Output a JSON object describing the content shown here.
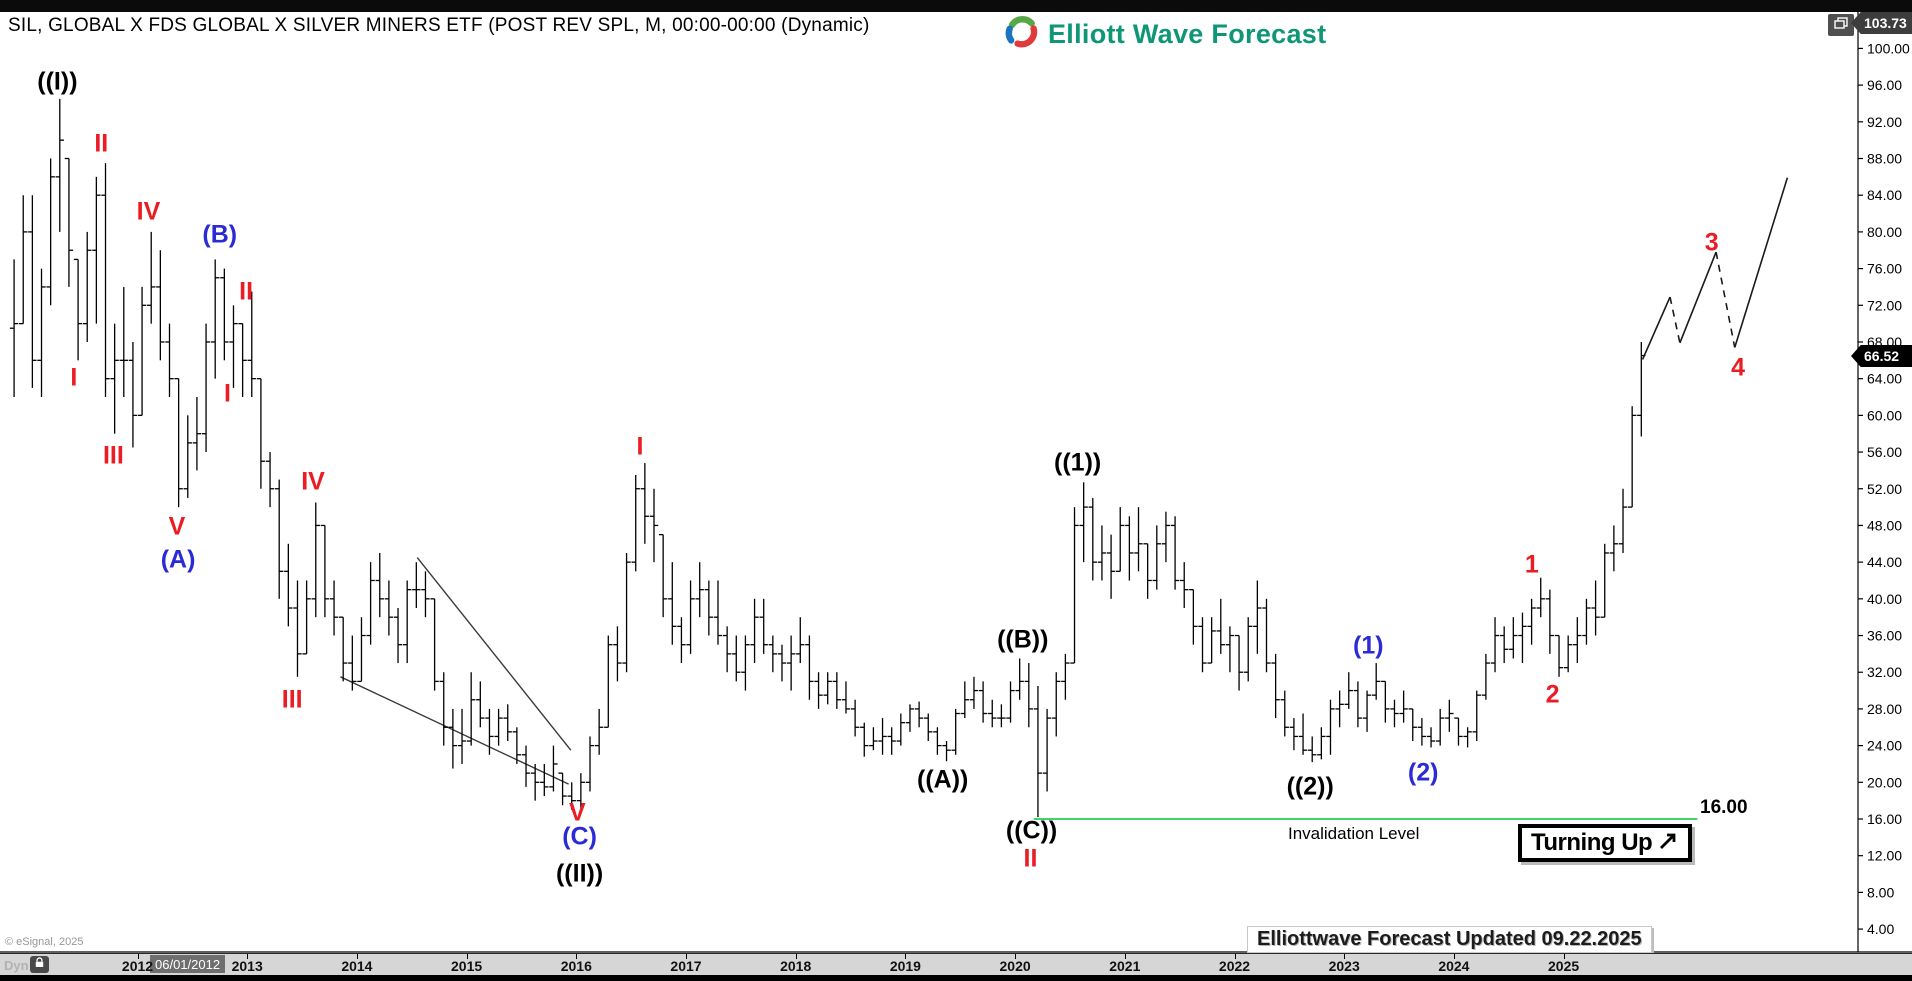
{
  "title_bar": {
    "title": "SIL, GLOBAL X FDS GLOBAL X SILVER MINERS ETF (POST REV SPL, M, 00:00-00:00 (Dynamic)",
    "logo_text": "Elliott Wave Forecast"
  },
  "price_axis": {
    "min": 4,
    "max": 100,
    "step": 4,
    "decimals": 2,
    "high_badge": "103.73",
    "last_badge": "66.52"
  },
  "time_axis": {
    "years": [
      2012,
      2013,
      2014,
      2015,
      2016,
      2017,
      2018,
      2019,
      2020,
      2021,
      2022,
      2023,
      2024,
      2025
    ],
    "selected_date": "06/01/2012",
    "mode_label": "Dyn",
    "lock_icon": "lock-icon"
  },
  "status": {
    "copyright": "© eSignal, 2025",
    "updated_note": "Elliottwave Forecast Updated 09.22.2025"
  },
  "annotations": {
    "invalidation": {
      "label": "Invalidation Level",
      "value_label": "16.00",
      "price": 16
    },
    "turning_up": {
      "label": "Turning Up",
      "icon": "up-right-arrow-icon"
    },
    "wave_labels": [
      {
        "text": "((I))",
        "color": "black",
        "t": 2011.27,
        "p": 96.3
      },
      {
        "text": "II",
        "color": "red",
        "t": 2011.67,
        "p": 89.6
      },
      {
        "text": "IV",
        "color": "red",
        "t": 2012.1,
        "p": 82.2
      },
      {
        "text": "(B)",
        "color": "blue",
        "t": 2012.75,
        "p": 79.7
      },
      {
        "text": "II",
        "color": "red",
        "t": 2012.99,
        "p": 73.5
      },
      {
        "text": "I",
        "color": "red",
        "t": 2011.42,
        "p": 64.1
      },
      {
        "text": "I",
        "color": "red",
        "t": 2012.82,
        "p": 62.3
      },
      {
        "text": "III",
        "color": "red",
        "t": 2011.78,
        "p": 55.6
      },
      {
        "text": "V",
        "color": "red",
        "t": 2012.36,
        "p": 47.8
      },
      {
        "text": "(A)",
        "color": "blue",
        "t": 2012.37,
        "p": 44.2
      },
      {
        "text": "IV",
        "color": "red",
        "t": 2013.6,
        "p": 52.7
      },
      {
        "text": "III",
        "color": "red",
        "t": 2013.41,
        "p": 29.0
      },
      {
        "text": "I",
        "color": "red",
        "t": 2016.58,
        "p": 56.5
      },
      {
        "text": "V",
        "color": "red",
        "t": 2016.01,
        "p": 16.7
      },
      {
        "text": "(C)",
        "color": "blue",
        "t": 2016.03,
        "p": 14.0
      },
      {
        "text": "((II))",
        "color": "black",
        "t": 2016.03,
        "p": 10.0
      },
      {
        "text": "((A))",
        "color": "black",
        "t": 2019.34,
        "p": 20.3
      },
      {
        "text": "((B))",
        "color": "black",
        "t": 2020.07,
        "p": 35.5
      },
      {
        "text": "((C))",
        "color": "black",
        "t": 2020.15,
        "p": 14.7
      },
      {
        "text": "II",
        "color": "red",
        "t": 2020.14,
        "p": 11.6
      },
      {
        "text": "((1))",
        "color": "black",
        "t": 2020.57,
        "p": 54.8
      },
      {
        "text": "((2))",
        "color": "black",
        "t": 2022.69,
        "p": 19.5
      },
      {
        "text": "(1)",
        "color": "blue",
        "t": 2023.22,
        "p": 34.9
      },
      {
        "text": "(2)",
        "color": "blue",
        "t": 2023.72,
        "p": 21.0
      },
      {
        "text": "1",
        "color": "red",
        "t": 2024.71,
        "p": 43.7
      },
      {
        "text": "2",
        "color": "red",
        "t": 2024.9,
        "p": 29.5
      },
      {
        "text": "3",
        "color": "red",
        "t": 2026.35,
        "p": 78.8
      },
      {
        "text": "4",
        "color": "red",
        "t": 2026.59,
        "p": 65.2
      }
    ]
  },
  "colors": {
    "red_label": "#ea1c24",
    "blue_label": "#2b2bd6",
    "black_label": "#000000",
    "support_green": "#00c832",
    "bar": "#000000",
    "trendline": "#3a3a3a",
    "logo_green": "#0e9676"
  },
  "chart_data": {
    "type": "bar",
    "subtype": "monthly-ohlc-bars",
    "symbol": "SIL",
    "timeframe": "M",
    "ylabel": "Price",
    "ylim": [
      2,
      104
    ],
    "x_domain": [
      2010.8,
      2027.2
    ],
    "grid": false,
    "bars_format": [
      "year",
      "month",
      "high",
      "low",
      "close"
    ],
    "bars": [
      [
        2010,
        11,
        77,
        62,
        70
      ],
      [
        2010,
        12,
        84,
        70,
        80
      ],
      [
        2011,
        1,
        84,
        63,
        66
      ],
      [
        2011,
        2,
        76,
        62,
        74
      ],
      [
        2011,
        3,
        88,
        72,
        86
      ],
      [
        2011,
        4,
        94.5,
        80,
        90
      ],
      [
        2011,
        5,
        88,
        74,
        78
      ],
      [
        2011,
        6,
        77,
        66,
        70
      ],
      [
        2011,
        7,
        80,
        68,
        78
      ],
      [
        2011,
        8,
        86,
        70,
        84
      ],
      [
        2011,
        9,
        87.5,
        62,
        64
      ],
      [
        2011,
        10,
        70,
        58,
        66
      ],
      [
        2011,
        11,
        74,
        62,
        66
      ],
      [
        2011,
        12,
        68,
        56.5,
        60
      ],
      [
        2012,
        1,
        74,
        60,
        72
      ],
      [
        2012,
        2,
        80,
        70,
        74
      ],
      [
        2012,
        3,
        78,
        66,
        68
      ],
      [
        2012,
        4,
        70,
        62,
        64
      ],
      [
        2012,
        5,
        64,
        50,
        52
      ],
      [
        2012,
        6,
        60,
        51,
        57
      ],
      [
        2012,
        7,
        62,
        54,
        58
      ],
      [
        2012,
        8,
        70,
        56,
        68
      ],
      [
        2012,
        9,
        77,
        64,
        75
      ],
      [
        2012,
        10,
        76,
        66,
        68
      ],
      [
        2012,
        11,
        72,
        63,
        70
      ],
      [
        2012,
        12,
        70,
        62,
        66
      ],
      [
        2013,
        1,
        73.5,
        62,
        64
      ],
      [
        2013,
        2,
        64,
        52,
        55
      ],
      [
        2013,
        3,
        56,
        50,
        52
      ],
      [
        2013,
        4,
        53,
        40,
        43
      ],
      [
        2013,
        5,
        46,
        37,
        39
      ],
      [
        2013,
        6,
        42,
        31.5,
        34
      ],
      [
        2013,
        7,
        42,
        34,
        40
      ],
      [
        2013,
        8,
        50.5,
        38,
        48
      ],
      [
        2013,
        9,
        48,
        38,
        40
      ],
      [
        2013,
        10,
        42,
        36,
        38
      ],
      [
        2013,
        11,
        38,
        31,
        33
      ],
      [
        2013,
        12,
        36,
        30,
        31
      ],
      [
        2014,
        1,
        38,
        31,
        36
      ],
      [
        2014,
        2,
        44,
        35,
        42
      ],
      [
        2014,
        3,
        45,
        38,
        40
      ],
      [
        2014,
        4,
        42,
        36,
        38
      ],
      [
        2014,
        5,
        39,
        33,
        35
      ],
      [
        2014,
        6,
        42,
        33,
        41
      ],
      [
        2014,
        7,
        44,
        39,
        41
      ],
      [
        2014,
        8,
        43,
        38,
        40
      ],
      [
        2014,
        9,
        40,
        30,
        31
      ],
      [
        2014,
        10,
        32,
        24,
        26
      ],
      [
        2014,
        11,
        28,
        21.5,
        24
      ],
      [
        2014,
        12,
        28,
        22,
        24.5
      ],
      [
        2015,
        1,
        32,
        24,
        29
      ],
      [
        2015,
        2,
        31,
        26,
        27
      ],
      [
        2015,
        3,
        28,
        23,
        25
      ],
      [
        2015,
        4,
        28,
        24,
        27
      ],
      [
        2015,
        5,
        28.5,
        24.5,
        25.5
      ],
      [
        2015,
        6,
        26,
        22,
        23
      ],
      [
        2015,
        7,
        24,
        19.5,
        21
      ],
      [
        2015,
        8,
        22,
        18,
        20
      ],
      [
        2015,
        9,
        22,
        18.5,
        19.5
      ],
      [
        2015,
        10,
        24,
        19,
        22
      ],
      [
        2015,
        11,
        21,
        17.5,
        18.5
      ],
      [
        2015,
        12,
        20,
        17,
        18
      ],
      [
        2016,
        1,
        21,
        17.2,
        20
      ],
      [
        2016,
        2,
        25,
        19,
        24
      ],
      [
        2016,
        3,
        28,
        23,
        26
      ],
      [
        2016,
        4,
        36,
        26,
        35
      ],
      [
        2016,
        5,
        37,
        31,
        33
      ],
      [
        2016,
        6,
        45,
        32,
        44
      ],
      [
        2016,
        7,
        53.5,
        43,
        52
      ],
      [
        2016,
        8,
        54.8,
        46,
        49
      ],
      [
        2016,
        9,
        52,
        44,
        48
      ],
      [
        2016,
        10,
        47,
        38,
        40
      ],
      [
        2016,
        11,
        44,
        35,
        37
      ],
      [
        2016,
        12,
        38,
        33,
        35
      ],
      [
        2017,
        1,
        42,
        34,
        40
      ],
      [
        2017,
        2,
        44,
        38,
        41
      ],
      [
        2017,
        3,
        42,
        36,
        38
      ],
      [
        2017,
        4,
        42,
        35,
        36
      ],
      [
        2017,
        5,
        37,
        32,
        34
      ],
      [
        2017,
        6,
        36,
        31,
        32
      ],
      [
        2017,
        7,
        36,
        30,
        35
      ],
      [
        2017,
        8,
        40,
        33,
        38
      ],
      [
        2017,
        9,
        40,
        34,
        35
      ],
      [
        2017,
        10,
        36,
        32,
        34
      ],
      [
        2017,
        11,
        35,
        31,
        33
      ],
      [
        2017,
        12,
        36,
        30,
        34
      ],
      [
        2018,
        1,
        38,
        33,
        35
      ],
      [
        2018,
        2,
        36,
        29,
        31
      ],
      [
        2018,
        3,
        32,
        28,
        29.5
      ],
      [
        2018,
        4,
        32,
        28.5,
        31
      ],
      [
        2018,
        5,
        32,
        28,
        29
      ],
      [
        2018,
        6,
        31,
        27.5,
        28
      ],
      [
        2018,
        7,
        29,
        25,
        26
      ],
      [
        2018,
        8,
        26.5,
        22.8,
        24
      ],
      [
        2018,
        9,
        26,
        23.5,
        24.5
      ],
      [
        2018,
        10,
        27,
        23,
        25
      ],
      [
        2018,
        11,
        26,
        23,
        24.5
      ],
      [
        2018,
        12,
        27.5,
        24,
        26.5
      ],
      [
        2019,
        1,
        28.5,
        25.5,
        28
      ],
      [
        2019,
        2,
        28.8,
        26,
        27
      ],
      [
        2019,
        3,
        27.5,
        24.5,
        25.5
      ],
      [
        2019,
        4,
        26,
        23,
        24
      ],
      [
        2019,
        5,
        24.5,
        22.3,
        23.5
      ],
      [
        2019,
        6,
        28,
        23,
        27.5
      ],
      [
        2019,
        7,
        31,
        27,
        29
      ],
      [
        2019,
        8,
        31.5,
        28,
        30
      ],
      [
        2019,
        9,
        31,
        26.5,
        27.5
      ],
      [
        2019,
        10,
        29,
        26,
        27
      ],
      [
        2019,
        11,
        28.5,
        26,
        27
      ],
      [
        2019,
        12,
        31,
        26.5,
        30
      ],
      [
        2020,
        1,
        33.5,
        29,
        31
      ],
      [
        2020,
        2,
        33,
        26,
        28
      ],
      [
        2020,
        3,
        30.5,
        16.2,
        21
      ],
      [
        2020,
        4,
        28,
        19,
        27
      ],
      [
        2020,
        5,
        32,
        25,
        31
      ],
      [
        2020,
        6,
        34,
        29,
        33
      ],
      [
        2020,
        7,
        50,
        33,
        48
      ],
      [
        2020,
        8,
        52.7,
        44,
        50
      ],
      [
        2020,
        9,
        51,
        42,
        44
      ],
      [
        2020,
        10,
        48,
        42,
        45
      ],
      [
        2020,
        11,
        47,
        40,
        43
      ],
      [
        2020,
        12,
        50,
        43,
        48
      ],
      [
        2021,
        1,
        49,
        42,
        45
      ],
      [
        2021,
        2,
        50,
        43,
        46
      ],
      [
        2021,
        3,
        46,
        40,
        42
      ],
      [
        2021,
        4,
        48,
        41,
        46
      ],
      [
        2021,
        5,
        49.5,
        44,
        48
      ],
      [
        2021,
        6,
        49,
        41,
        42
      ],
      [
        2021,
        7,
        44,
        39,
        41
      ],
      [
        2021,
        8,
        41,
        35,
        37
      ],
      [
        2021,
        9,
        38,
        32,
        33
      ],
      [
        2021,
        10,
        38,
        33,
        36.5
      ],
      [
        2021,
        11,
        40,
        34,
        35
      ],
      [
        2021,
        12,
        37,
        32,
        36
      ],
      [
        2022,
        1,
        36,
        30,
        32
      ],
      [
        2022,
        2,
        38,
        31,
        37
      ],
      [
        2022,
        3,
        42,
        34,
        39
      ],
      [
        2022,
        4,
        40,
        32,
        33
      ],
      [
        2022,
        5,
        34,
        27,
        29
      ],
      [
        2022,
        6,
        30,
        25,
        26
      ],
      [
        2022,
        7,
        27,
        23.5,
        25
      ],
      [
        2022,
        8,
        27.5,
        23,
        23.5
      ],
      [
        2022,
        9,
        25,
        22.2,
        23
      ],
      [
        2022,
        10,
        26,
        22.5,
        25
      ],
      [
        2022,
        11,
        29,
        23,
        28
      ],
      [
        2022,
        12,
        30,
        26,
        28.5
      ],
      [
        2023,
        1,
        32,
        28,
        30
      ],
      [
        2023,
        2,
        31,
        26,
        27
      ],
      [
        2023,
        3,
        30,
        25.5,
        29.5
      ],
      [
        2023,
        4,
        33,
        29,
        31
      ],
      [
        2023,
        5,
        31,
        26.5,
        28
      ],
      [
        2023,
        6,
        29,
        26,
        27.5
      ],
      [
        2023,
        7,
        30,
        26.5,
        28
      ],
      [
        2023,
        8,
        28,
        24.5,
        26
      ],
      [
        2023,
        9,
        27,
        24,
        25
      ],
      [
        2023,
        10,
        26,
        23.8,
        24.5
      ],
      [
        2023,
        11,
        28,
        24,
        27
      ],
      [
        2023,
        12,
        29,
        25.5,
        27.5
      ],
      [
        2024,
        1,
        27,
        24,
        25
      ],
      [
        2024,
        2,
        26,
        23.8,
        25.5
      ],
      [
        2024,
        3,
        30,
        24.5,
        29.5
      ],
      [
        2024,
        4,
        34,
        29,
        33
      ],
      [
        2024,
        5,
        38,
        32,
        36
      ],
      [
        2024,
        6,
        37,
        33,
        34.5
      ],
      [
        2024,
        7,
        38,
        33.5,
        36
      ],
      [
        2024,
        8,
        38.5,
        33,
        37
      ],
      [
        2024,
        9,
        40,
        35,
        39
      ],
      [
        2024,
        10,
        42.3,
        38,
        40
      ],
      [
        2024,
        11,
        41,
        34,
        36
      ],
      [
        2024,
        12,
        36,
        31.5,
        32.5
      ],
      [
        2025,
        1,
        36,
        32,
        35
      ],
      [
        2025,
        2,
        38,
        33,
        36
      ],
      [
        2025,
        3,
        40,
        35,
        39
      ],
      [
        2025,
        4,
        42,
        36,
        38
      ],
      [
        2025,
        5,
        46,
        38,
        45
      ],
      [
        2025,
        6,
        48,
        43,
        46
      ],
      [
        2025,
        7,
        52,
        45,
        50
      ],
      [
        2025,
        8,
        61,
        50,
        60
      ],
      [
        2025,
        9,
        68,
        57.7,
        66.52
      ]
    ],
    "trendlines": [
      {
        "from": [
          2014.55,
          44.5
        ],
        "to": [
          2015.95,
          23.5
        ]
      },
      {
        "from": [
          2013.85,
          31.5
        ],
        "to": [
          2015.93,
          19.8
        ]
      }
    ],
    "support_line": {
      "price": 16,
      "from_t": 2020.17,
      "to_t": 2026.22
    },
    "projection": {
      "points": [
        [
          2025.72,
          66.1
        ],
        [
          2025.97,
          72.9
        ],
        [
          2026.06,
          67.9
        ],
        [
          2026.39,
          77.8
        ],
        [
          2026.56,
          67.4
        ],
        [
          2027.04,
          85.9
        ]
      ],
      "dashed_segments": [
        1,
        3
      ]
    }
  }
}
